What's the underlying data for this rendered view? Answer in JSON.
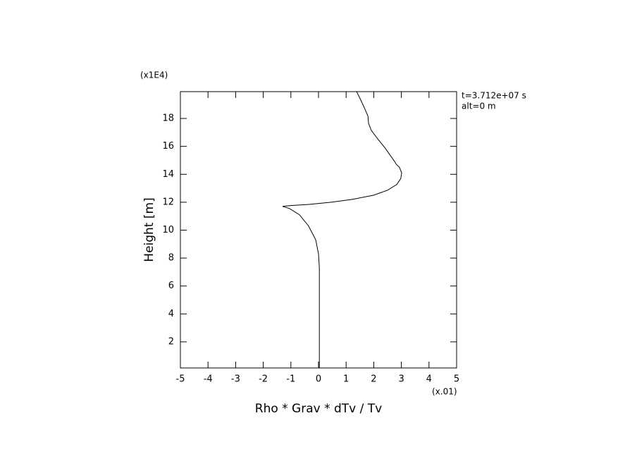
{
  "chart_data": {
    "type": "line",
    "xlabel": "Rho * Grav * dTv / Tv",
    "ylabel": "Height [m]",
    "x_multiplier": "(x.01)",
    "y_multiplier": "(x1E4)",
    "annotations": [
      "t=3.712e+07 s",
      "alt=0 m"
    ],
    "xlim": [
      -5,
      5
    ],
    "ylim": [
      0.13,
      19.92
    ],
    "xticks": [
      -5,
      -4,
      -3,
      -2,
      -1,
      0,
      1,
      2,
      3,
      4,
      5
    ],
    "yticks": [
      2,
      4,
      6,
      8,
      10,
      12,
      14,
      16,
      18
    ],
    "color": "#000000",
    "x": [
      0.03,
      0.03,
      0,
      -0.1,
      -0.36,
      -0.69,
      -1.05,
      -1.3,
      -1.05,
      -0.31,
      0.46,
      1.22,
      1.99,
      2.5,
      2.83,
      2.98,
      3.01,
      2.93,
      2.81,
      2.76,
      2.42,
      2.12,
      1.91,
      1.81,
      1.79,
      1.68,
      1.53,
      1.38
    ],
    "y": [
      0.13,
      7.3,
      8.3,
      9.3,
      10.3,
      11.1,
      11.55,
      11.7,
      11.75,
      11.85,
      12.0,
      12.2,
      12.5,
      12.86,
      13.26,
      13.7,
      14.1,
      14.5,
      14.73,
      14.9,
      15.85,
      16.6,
      17.15,
      17.66,
      18.16,
      18.67,
      19.32,
      19.92
    ]
  }
}
